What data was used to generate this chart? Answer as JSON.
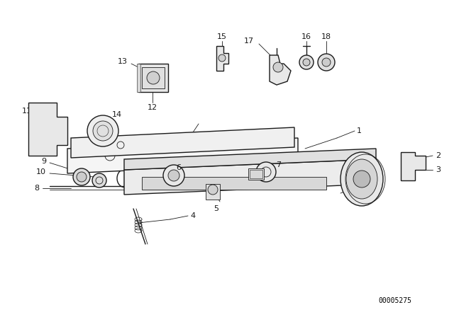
{
  "bg_color": "#ffffff",
  "line_color": "#1a1a1a",
  "diagram_id": "00005275",
  "fig_width": 6.4,
  "fig_height": 4.48,
  "dpi": 100,
  "label_fs": 8.0,
  "lw_main": 1.0,
  "lw_thin": 0.6,
  "lw_xtra": 0.4
}
